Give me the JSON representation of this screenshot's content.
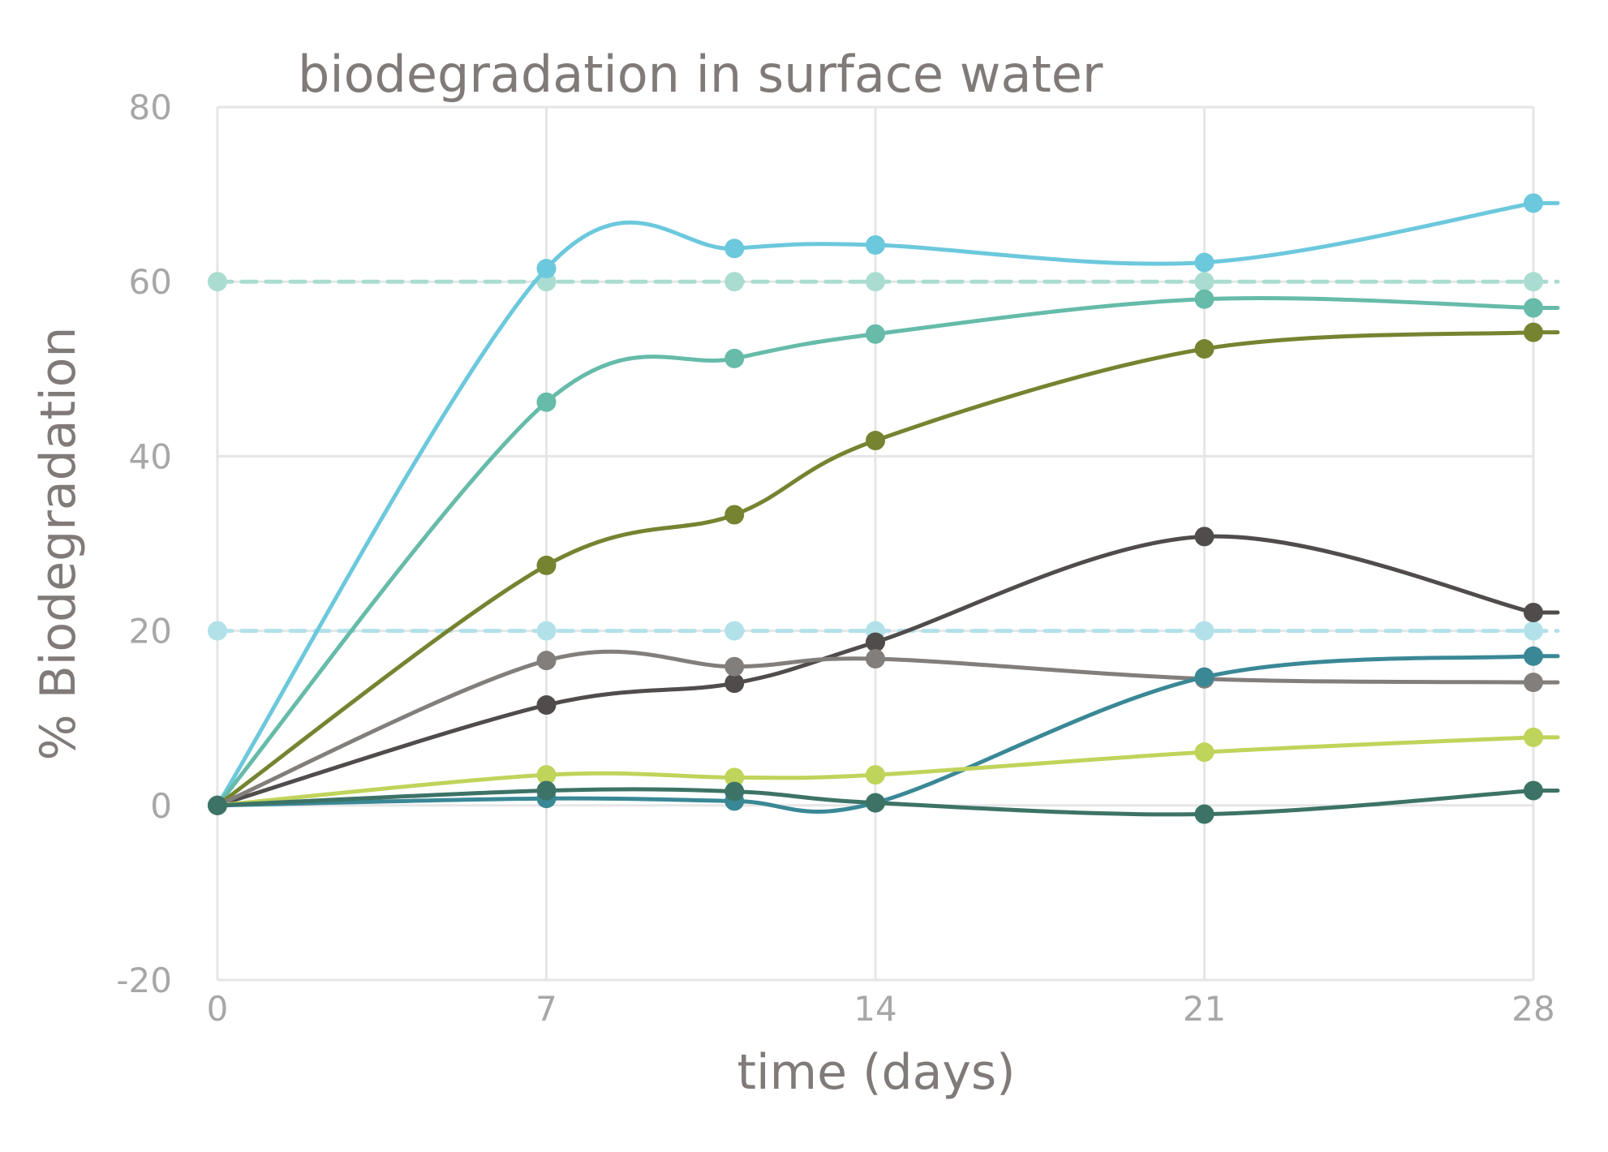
{
  "chart_data": {
    "type": "line",
    "title": "biodegradation in surface water",
    "xlabel": "time (days)",
    "ylabel": "% Biodegradation",
    "xlim": [
      0,
      28
    ],
    "ylim": [
      -20,
      80
    ],
    "xticks": [
      "0",
      "7",
      "14",
      "21",
      "28"
    ],
    "yticks": [
      "80",
      "60",
      "40",
      "20",
      "0",
      "-20"
    ],
    "grid": true,
    "series": [
      {
        "color": "#6cc8dc",
        "dashed": false,
        "x": [
          0,
          7,
          11,
          14,
          21,
          28
        ],
        "y": [
          0,
          61.5,
          63.8,
          64.2,
          62.2,
          69
        ]
      },
      {
        "color": "#66bba9",
        "dashed": false,
        "x": [
          0,
          7,
          11,
          14,
          21,
          28
        ],
        "y": [
          0,
          46.2,
          51.2,
          54,
          58,
          57
        ]
      },
      {
        "color": "#768330",
        "dashed": false,
        "x": [
          0,
          7,
          11,
          14,
          21,
          28
        ],
        "y": [
          0,
          27.5,
          33.3,
          41.8,
          52.3,
          54.2
        ]
      },
      {
        "color": "#4f4c4b",
        "dashed": false,
        "x": [
          0,
          7,
          11,
          14,
          21,
          28
        ],
        "y": [
          0,
          11.5,
          14,
          18.7,
          30.8,
          22.1
        ]
      },
      {
        "color": "#827e7c",
        "dashed": false,
        "x": [
          0,
          7,
          11,
          14,
          21,
          28
        ],
        "y": [
          0,
          16.6,
          15.9,
          16.8,
          14.5,
          14.1
        ]
      },
      {
        "color": "#3a8896",
        "dashed": false,
        "x": [
          0,
          7,
          11,
          14,
          21,
          28
        ],
        "y": [
          0,
          0.8,
          0.5,
          0.3,
          14.7,
          17.1
        ]
      },
      {
        "color": "#bfd45a",
        "dashed": false,
        "x": [
          0,
          7,
          11,
          14,
          21,
          28
        ],
        "y": [
          0,
          3.5,
          3.2,
          3.5,
          6.1,
          7.8
        ]
      },
      {
        "color": "#3d7367",
        "dashed": false,
        "x": [
          0,
          7,
          11,
          14,
          21,
          28
        ],
        "y": [
          0,
          1.7,
          1.6,
          0.3,
          -1,
          1.7
        ]
      },
      {
        "color": "#b2e1ea",
        "dashed": true,
        "x": [
          0,
          7,
          11,
          14,
          21,
          28
        ],
        "y": [
          20,
          20,
          20,
          20,
          20,
          20
        ]
      },
      {
        "color": "#aadcd1",
        "dashed": true,
        "x": [
          0,
          7,
          11,
          14,
          21,
          28
        ],
        "y": [
          60,
          60,
          60,
          60,
          60,
          60
        ]
      }
    ]
  }
}
